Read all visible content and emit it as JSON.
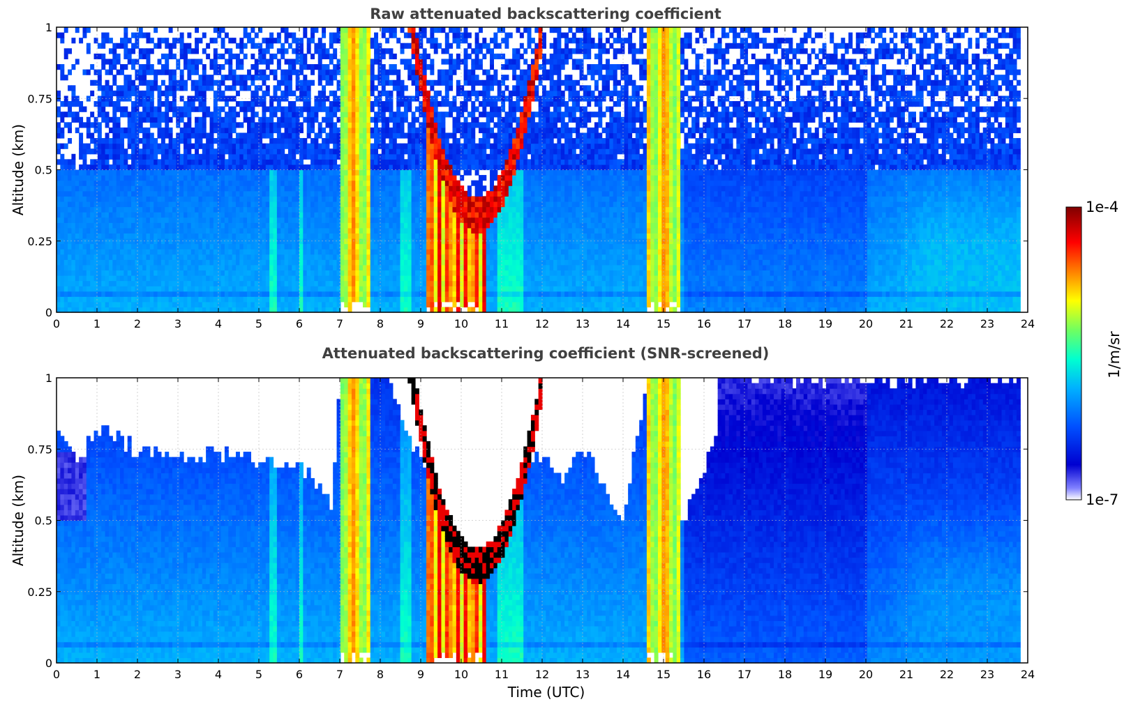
{
  "chart_data": [
    {
      "type": "heatmap",
      "title": "Raw attenuated backscattering coefficient",
      "xlabel": "",
      "ylabel": "Altitude (km)",
      "xlim": [
        0,
        24
      ],
      "ylim": [
        0,
        1
      ],
      "x_ticks": [
        0,
        1,
        2,
        3,
        4,
        5,
        6,
        7,
        8,
        9,
        10,
        11,
        12,
        13,
        14,
        15,
        16,
        17,
        18,
        19,
        20,
        21,
        22,
        23,
        24
      ],
      "y_ticks": [
        0,
        0.25,
        0.5,
        0.75,
        1
      ],
      "y_tick_labels": [
        "0",
        "0.25",
        "0.5",
        "0.75",
        "1"
      ],
      "grid": true,
      "screened": false,
      "data_end_time": 23.8,
      "features": {
        "background_noise_top_km": 0.5,
        "cloud_layer_raw": {
          "time_start": 8.2,
          "time_end": 12.0,
          "top_km": 1.0,
          "bottom_min_km": 0.28
        },
        "rain_bands": [
          [
            7.0,
            7.75
          ],
          [
            14.6,
            15.45
          ]
        ],
        "high_backscatter_columns": [
          [
            9.1,
            10.6
          ]
        ]
      }
    },
    {
      "type": "heatmap",
      "title": "Attenuated backscattering coefficient (SNR-screened)",
      "xlabel": "Time (UTC)",
      "ylabel": "Altitude (km)",
      "xlim": [
        0,
        24
      ],
      "ylim": [
        0,
        1
      ],
      "x_ticks": [
        0,
        1,
        2,
        3,
        4,
        5,
        6,
        7,
        8,
        9,
        10,
        11,
        12,
        13,
        14,
        15,
        16,
        17,
        18,
        19,
        20,
        21,
        22,
        23,
        24
      ],
      "y_ticks": [
        0,
        0.25,
        0.5,
        0.75,
        1
      ],
      "y_tick_labels": [
        "0",
        "0.25",
        "0.5",
        "0.75",
        "1"
      ],
      "grid": true,
      "screened": true,
      "data_end_time": 23.8,
      "features": {
        "screened_top_profile_km": [
          [
            0,
            0.85
          ],
          [
            0.5,
            0.72
          ],
          [
            1,
            0.82
          ],
          [
            2,
            0.75
          ],
          [
            3,
            0.72
          ],
          [
            4,
            0.74
          ],
          [
            5,
            0.7
          ],
          [
            6,
            0.7
          ],
          [
            6.8,
            0.55
          ],
          [
            7,
            1
          ],
          [
            8.2,
            1
          ],
          [
            9,
            0.7
          ],
          [
            10,
            0.5
          ],
          [
            10.6,
            0.45
          ],
          [
            11,
            0.7
          ],
          [
            12,
            0.72
          ],
          [
            12.5,
            0.65
          ],
          [
            13,
            0.75
          ],
          [
            14,
            0.5
          ],
          [
            14.6,
            1
          ],
          [
            15.5,
            0.5
          ],
          [
            16.3,
            0.8
          ],
          [
            16.4,
            1
          ],
          [
            24,
            1
          ]
        ],
        "cloud_layer_screened": {
          "time_start": 8.2,
          "time_end": 12.0,
          "top_km": 1.0,
          "bottom_min_km": 0.26
        }
      }
    }
  ],
  "colorbar": {
    "max_label": "1e-4",
    "min_label": "1e-7",
    "unit_label": "1/m/sr",
    "scale": "log",
    "range": [
      1e-07,
      0.0001
    ],
    "colormap": [
      "#ffffff",
      "#8080ff",
      "#0000d0",
      "#0050ff",
      "#00b0ff",
      "#00ffd0",
      "#70ff60",
      "#ffff00",
      "#ff8000",
      "#ff0000",
      "#800000"
    ]
  }
}
